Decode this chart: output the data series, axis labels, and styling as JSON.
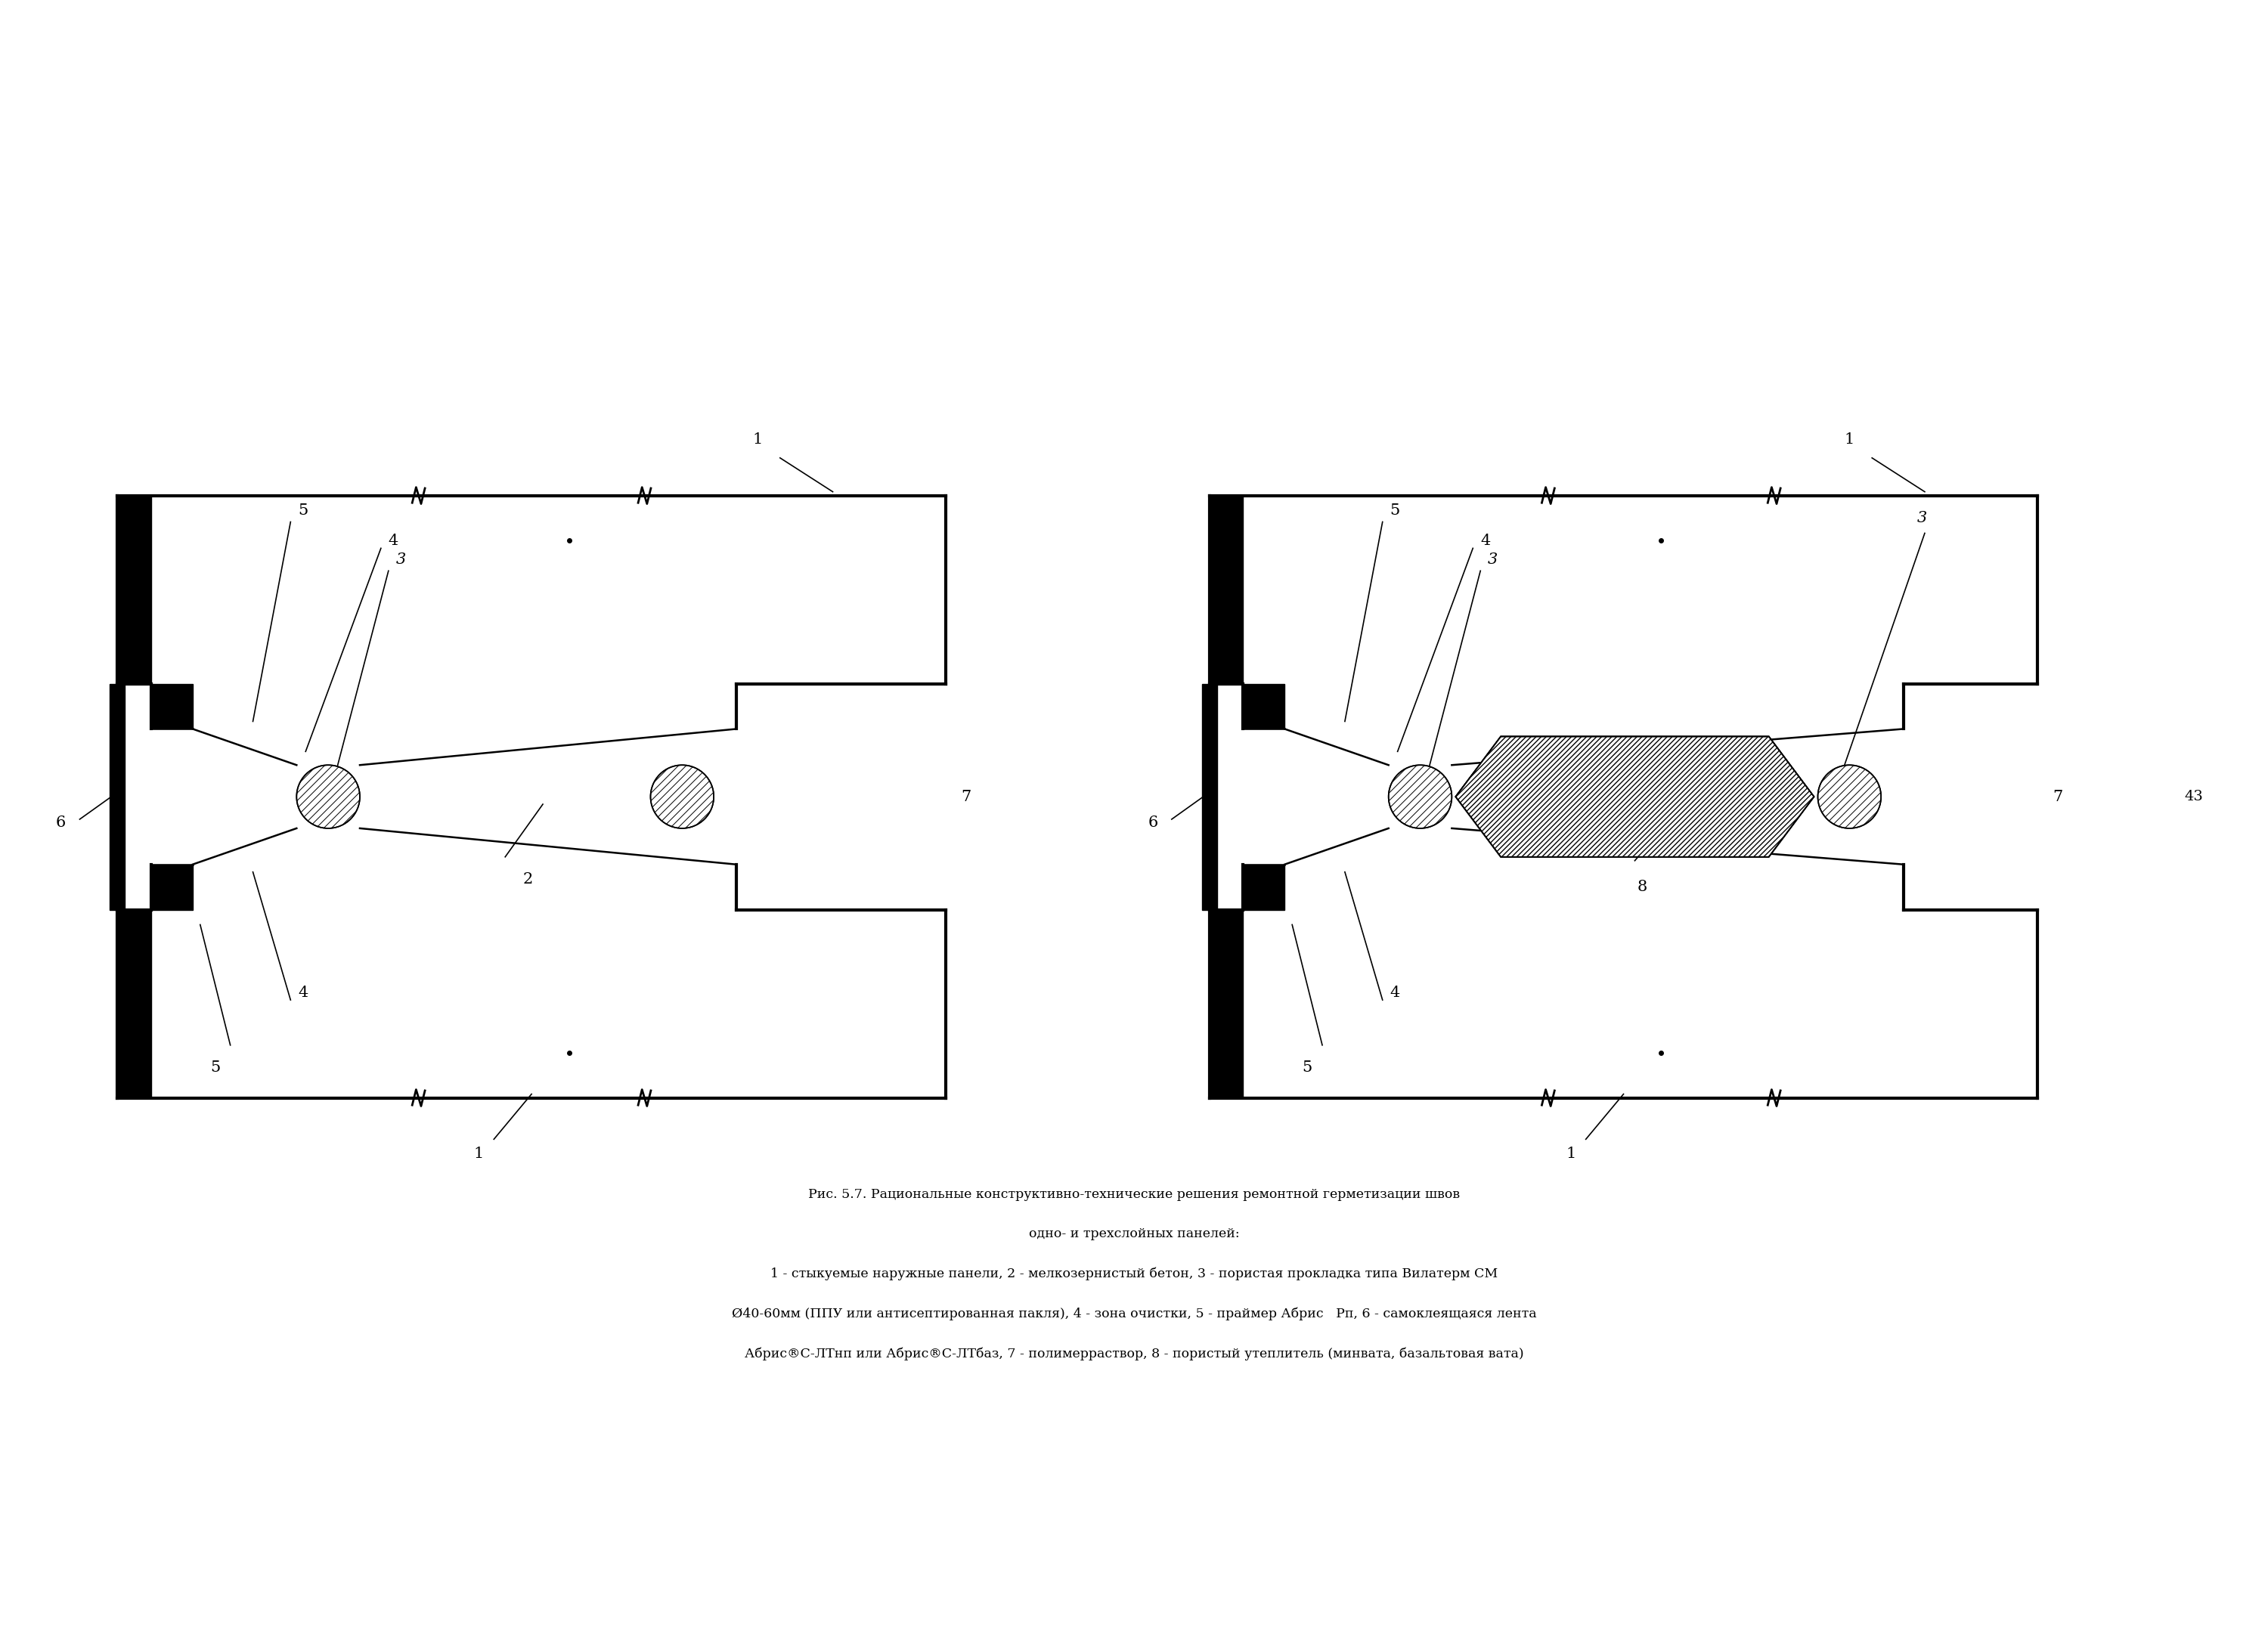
{
  "title_line1": "Рис. 5.7. Рациональные конструктивно-технические решения ремонтной герметизации швов",
  "title_line2": "одно- и трехслойных панелей:",
  "caption_line1": "1 - стыкуемые наружные панели, 2 - мелкозернистый бетон, 3 - пористая прокладка типа Вилатерм СМ",
  "caption_line2": "Ø40-60мм (ППУ или антисептированная пакля), 4 - зона очистки, 5 - праймер Абрис   Рп, 6 - самоклеящаяся лента",
  "caption_line3": "Абрис®C-ЛТнп или Абрис®C-ЛТбаз, 7 - полимерраствор, 8 - пористый утеплитель (минвата, базальтовая вата)",
  "page_number": "43",
  "bg_color": "#ffffff",
  "line_color": "#000000"
}
